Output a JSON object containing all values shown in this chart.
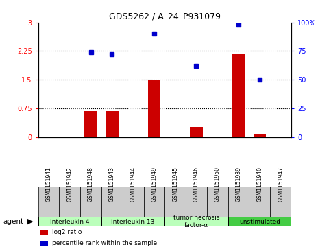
{
  "title": "GDS5262 / A_24_P931079",
  "samples": [
    "GSM1151941",
    "GSM1151942",
    "GSM1151948",
    "GSM1151943",
    "GSM1151944",
    "GSM1151949",
    "GSM1151945",
    "GSM1151946",
    "GSM1151950",
    "GSM1151939",
    "GSM1151940",
    "GSM1151947"
  ],
  "log2_ratio": [
    0,
    0,
    0.68,
    0.67,
    0,
    1.5,
    0,
    0.27,
    0,
    2.17,
    0.09,
    0
  ],
  "percentile_rank": [
    null,
    null,
    74,
    72,
    null,
    90,
    null,
    62,
    null,
    98,
    50,
    null
  ],
  "agents": [
    {
      "label": "interleukin 4",
      "start": 0,
      "end": 2,
      "color": "#bbffbb"
    },
    {
      "label": "interleukin 13",
      "start": 3,
      "end": 5,
      "color": "#bbffbb"
    },
    {
      "label": "tumor necrosis\nfactor-α",
      "start": 6,
      "end": 8,
      "color": "#bbffbb"
    },
    {
      "label": "unstimulated",
      "start": 9,
      "end": 11,
      "color": "#44cc44"
    }
  ],
  "ylim_left": [
    0,
    3
  ],
  "ylim_right": [
    0,
    100
  ],
  "yticks_left": [
    0,
    0.75,
    1.5,
    2.25,
    3
  ],
  "yticks_right": [
    0,
    25,
    50,
    75,
    100
  ],
  "ytick_labels_left": [
    "0",
    "0.75",
    "1.5",
    "2.25",
    "3"
  ],
  "ytick_labels_right": [
    "0",
    "25",
    "50",
    "75",
    "100%"
  ],
  "bar_color": "#cc0000",
  "dot_color": "#0000cc",
  "sample_box_color": "#cccccc",
  "legend_items": [
    {
      "color": "#cc0000",
      "label": "log2 ratio"
    },
    {
      "color": "#0000cc",
      "label": "percentile rank within the sample"
    }
  ],
  "dotted_lines": [
    0.75,
    1.5,
    2.25
  ],
  "agent_label": "agent"
}
